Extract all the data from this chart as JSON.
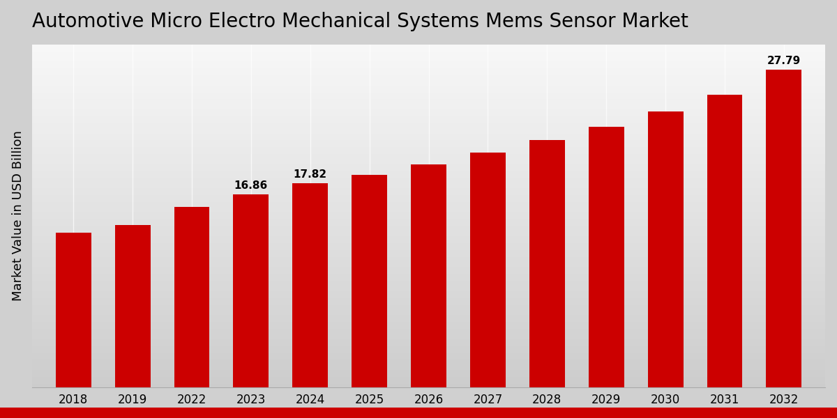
{
  "title": "Automotive Micro Electro Mechanical Systems Mems Sensor Market",
  "ylabel": "Market Value in USD Billion",
  "years": [
    "2018",
    "2019",
    "2022",
    "2023",
    "2024",
    "2025",
    "2026",
    "2027",
    "2028",
    "2029",
    "2030",
    "2031",
    "2032"
  ],
  "values": [
    13.5,
    14.2,
    15.8,
    16.86,
    17.82,
    18.6,
    19.5,
    20.5,
    21.6,
    22.8,
    24.1,
    25.6,
    27.79
  ],
  "bar_color": "#CC0000",
  "label_values": [
    16.86,
    17.82,
    27.79
  ],
  "label_indices": [
    3,
    4,
    12
  ],
  "title_fontsize": 20,
  "ylabel_fontsize": 13,
  "tick_fontsize": 12,
  "annotation_fontsize": 11,
  "ylim": [
    0,
    30
  ],
  "bar_width": 0.6,
  "bg_top": "#d0d0d0",
  "bg_bottom": "#f8f8f8",
  "gridline_color": "#ffffff",
  "bottom_bar_color": "#cc0000"
}
